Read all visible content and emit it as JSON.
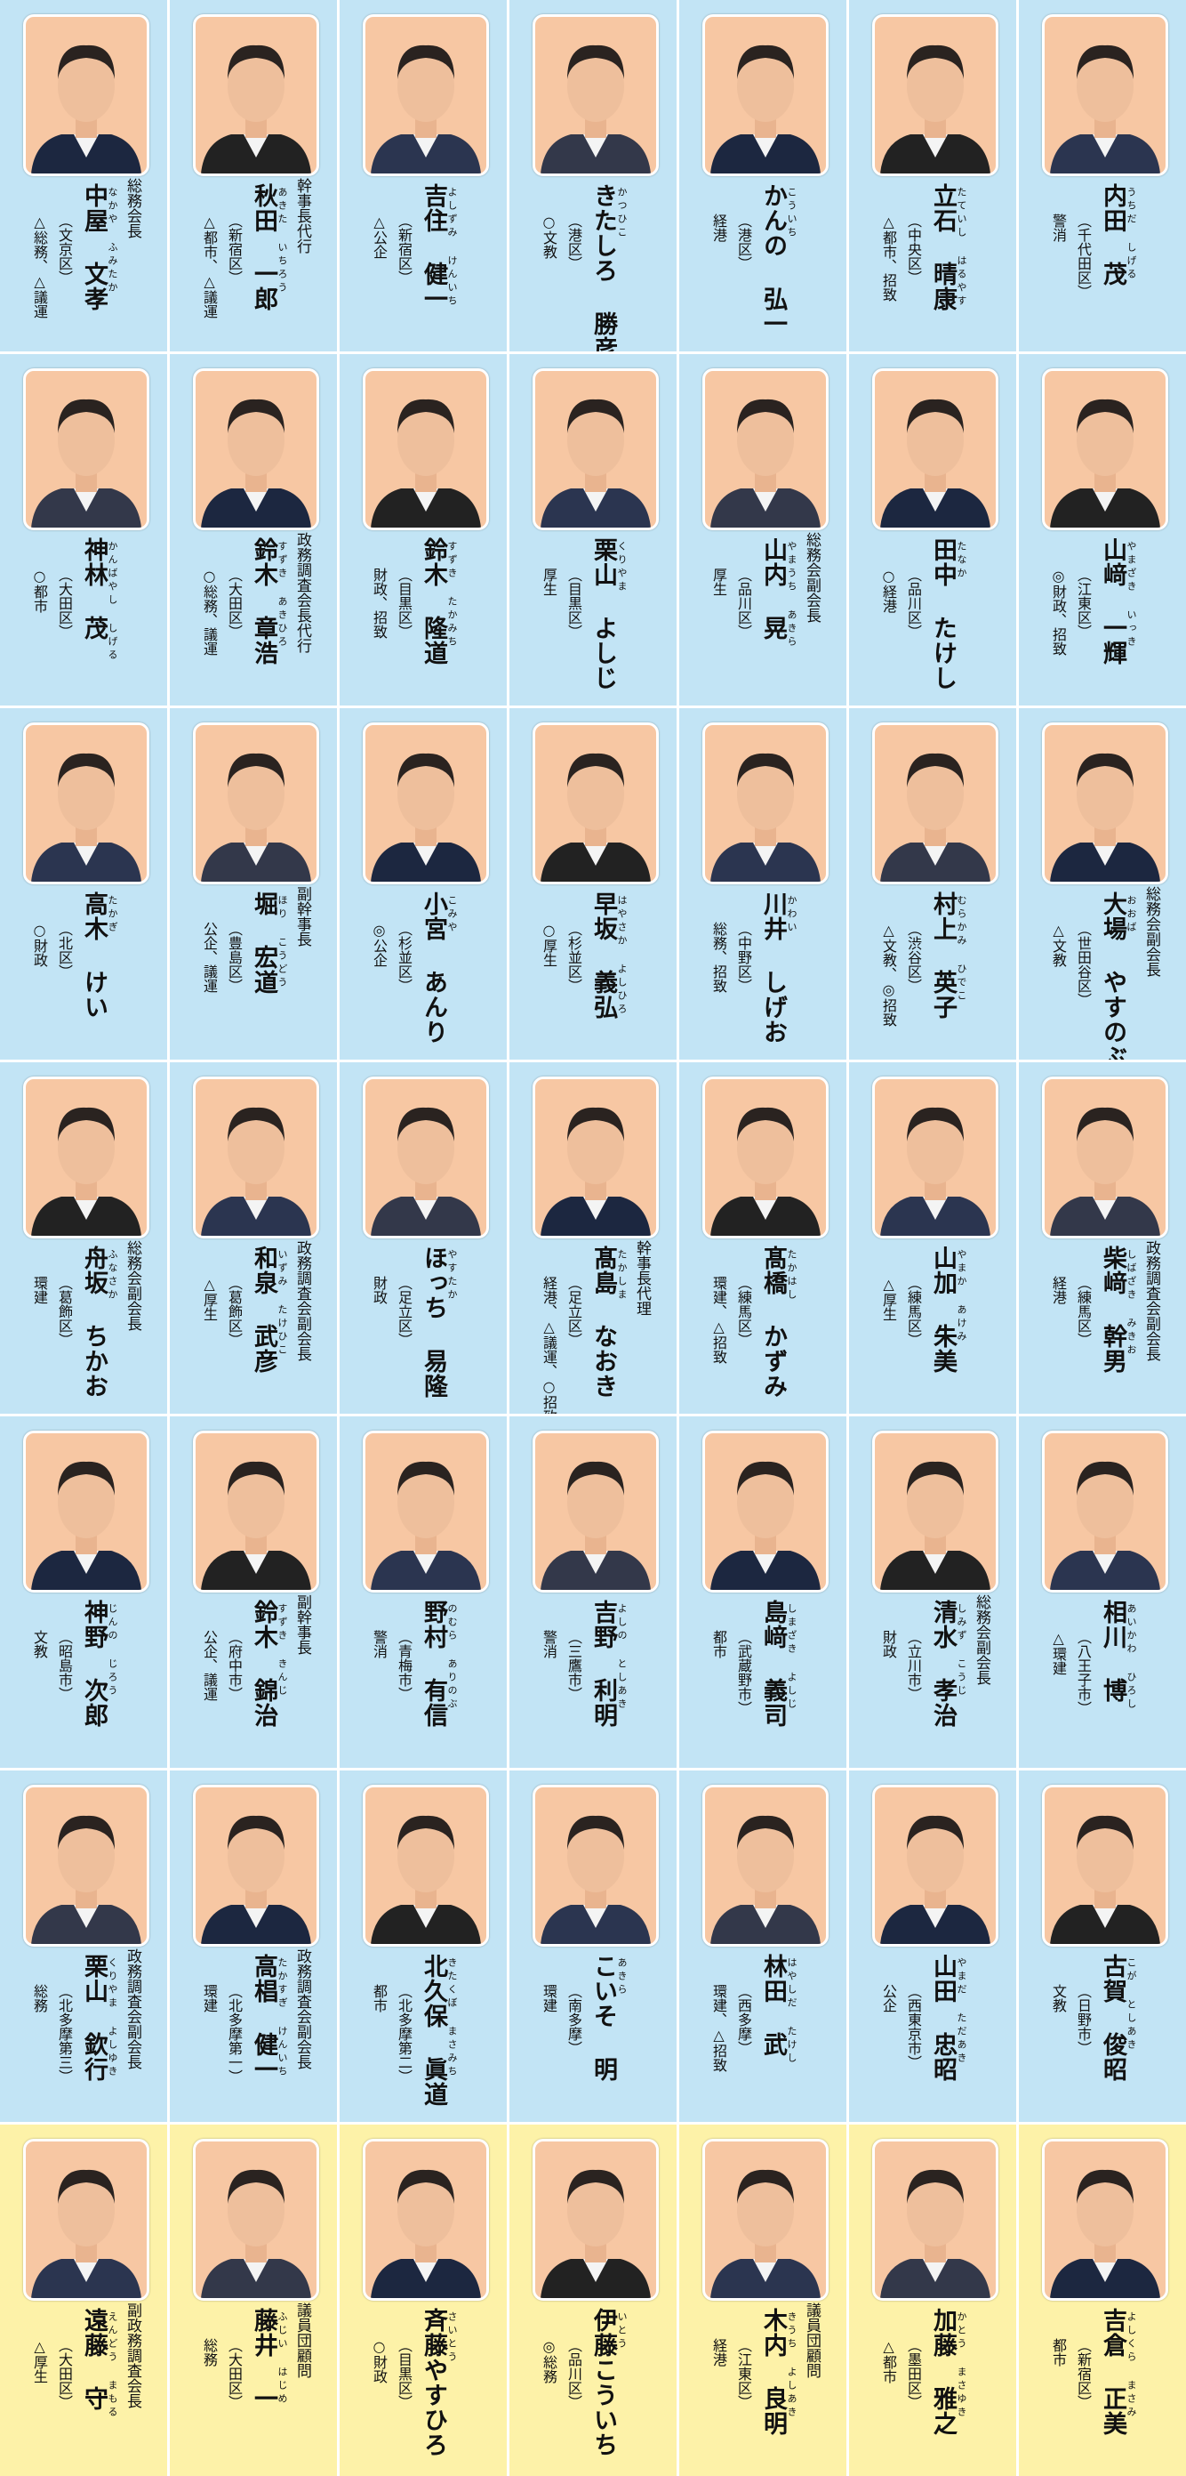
{
  "members": [
    {
      "role": "総務会長",
      "name": "中屋 文孝",
      "reading": "なかや ふみたか",
      "district": "（文京区）",
      "committees": "△総務、△議運"
    },
    {
      "role": "幹事長代行",
      "name": "秋田 一郎",
      "reading": "あきた いちろう",
      "district": "（新宿区）",
      "committees": "△都市、△議運"
    },
    {
      "name": "吉住 健一",
      "reading": "よしずみ けんいち",
      "district": "（新宿区）",
      "committees": "△公企"
    },
    {
      "name": "きたしろ 勝彦",
      "reading": "かつひこ",
      "district": "（港区）",
      "committees": "○文教"
    },
    {
      "name": "かんの 弘一",
      "reading": "こういち",
      "district": "（港区）",
      "committees": "経港"
    },
    {
      "name": "立石 晴康",
      "reading": "たていし はるやす",
      "district": "（中央区）",
      "committees": "△都市、招致"
    },
    {
      "name": "内田 茂",
      "reading": "うちだ しげる",
      "district": "（千代田区）",
      "committees": "警消"
    },
    {
      "name": "神林 茂",
      "reading": "かんばやし しげる",
      "district": "（大田区）",
      "committees": "○都市"
    },
    {
      "role": "政務調査会長代行",
      "name": "鈴木 章浩",
      "reading": "すずき あきひろ",
      "district": "（大田区）",
      "committees": "○総務、議運"
    },
    {
      "name": "鈴木 隆道",
      "reading": "すずき たかみち",
      "district": "（目黒区）",
      "committees": "財政、招致"
    },
    {
      "name": "栗山 よしじ",
      "reading": "くりやま",
      "district": "（目黒区）",
      "committees": "厚生"
    },
    {
      "role": "総務会副会長",
      "name": "山内 晃",
      "reading": "やまうち あきら",
      "district": "（品川区）",
      "committees": "厚生"
    },
    {
      "name": "田中 たけし",
      "reading": "たなか",
      "district": "（品川区）",
      "committees": "○経港"
    },
    {
      "name": "山﨑 一輝",
      "reading": "やまざき いっき",
      "district": "（江東区）",
      "committees": "◎財政、招致"
    },
    {
      "name": "高木 けい",
      "reading": "たかぎ",
      "district": "（北区）",
      "committees": "○財政"
    },
    {
      "role": "副幹事長",
      "name": "堀 宏道",
      "reading": "ほり こうどう",
      "district": "（豊島区）",
      "committees": "公企、議運"
    },
    {
      "name": "小宮 あんり",
      "reading": "こみや",
      "district": "（杉並区）",
      "committees": "◎公企"
    },
    {
      "name": "早坂 義弘",
      "reading": "はやさか よしひろ",
      "district": "（杉並区）",
      "committees": "○厚生"
    },
    {
      "name": "川井 しげお",
      "reading": "かわい",
      "district": "（中野区）",
      "committees": "総務、招致"
    },
    {
      "name": "村上 英子",
      "reading": "むらかみ ひでこ",
      "district": "（渋谷区）",
      "committees": "△文教、◎招致"
    },
    {
      "role": "総務会副会長",
      "name": "大場 やすのぶ",
      "reading": "おおば",
      "district": "（世田谷区）",
      "committees": "△文教"
    },
    {
      "role": "総務会副会長",
      "name": "舟坂 ちかお",
      "reading": "ふなさか",
      "district": "（葛飾区）",
      "committees": "環建"
    },
    {
      "role": "政務調査会副会長",
      "name": "和泉 武彦",
      "reading": "いずみ たけひこ",
      "district": "（葛飾区）",
      "committees": "△厚生"
    },
    {
      "name": "ほっち 易隆",
      "reading": "やすたか",
      "district": "（足立区）",
      "committees": "財政"
    },
    {
      "role": "幹事長代理",
      "name": "髙島 なおき",
      "reading": "たかしま",
      "district": "（足立区）",
      "committees": "経港、△議運、○招致"
    },
    {
      "name": "髙橋 かずみ",
      "reading": "たかはし",
      "district": "（練馬区）",
      "committees": "環建、△招致"
    },
    {
      "name": "山加 朱美",
      "reading": "やまか あけみ",
      "district": "（練馬区）",
      "committees": "△厚生"
    },
    {
      "role": "政務調査会副会長",
      "name": "柴﨑 幹男",
      "reading": "しばざき みきお",
      "district": "（練馬区）",
      "committees": "経港"
    },
    {
      "name": "神野 次郎",
      "reading": "じんの じろう",
      "district": "（昭島市）",
      "committees": "文教"
    },
    {
      "role": "副幹事長",
      "name": "鈴木 錦治",
      "reading": "すずき きんじ",
      "district": "（府中市）",
      "committees": "公企、議運"
    },
    {
      "name": "野村 有信",
      "reading": "のむら ありのぶ",
      "district": "（青梅市）",
      "committees": "警消"
    },
    {
      "name": "吉野 利明",
      "reading": "よしの としあき",
      "district": "（三鷹市）",
      "committees": "警消"
    },
    {
      "name": "島﨑 義司",
      "reading": "しまざき よしじ",
      "district": "（武蔵野市）",
      "committees": "都市"
    },
    {
      "role": "総務会副会長",
      "name": "清水 孝治",
      "reading": "しみず こうじ",
      "district": "（立川市）",
      "committees": "財政"
    },
    {
      "name": "相川 博",
      "reading": "あいかわ ひろし",
      "district": "（八王子市）",
      "committees": "△環建"
    },
    {
      "role": "政務調査会副会長",
      "name": "栗山 欽行",
      "reading": "くりやま よしゆき",
      "district": "（北多摩第三）",
      "committees": "総務"
    },
    {
      "role": "政務調査会副会長",
      "name": "高椙 健一",
      "reading": "たかすぎ けんいち",
      "district": "（北多摩第一）",
      "committees": "環建"
    },
    {
      "name": "北久保 眞道",
      "reading": "きたくぼ まさみち",
      "district": "（北多摩第二）",
      "committees": "都市"
    },
    {
      "name": "こいそ 明",
      "reading": "あきら",
      "district": "（南多摩）",
      "committees": "環建"
    },
    {
      "name": "林田 武",
      "reading": "はやしだ たけし",
      "district": "（西多摩）",
      "committees": "環建、△招致"
    },
    {
      "name": "山田 忠昭",
      "reading": "やまだ ただあき",
      "district": "（西東京市）",
      "committees": "公企"
    },
    {
      "name": "古賀 俊昭",
      "reading": "こが としあき",
      "district": "（日野市）",
      "committees": "文教"
    },
    {
      "role": "副政務調査会長",
      "name": "遠藤 守",
      "reading": "えんどう まもる",
      "district": "（大田区）",
      "committees": "△厚生"
    },
    {
      "role": "議員団顧問",
      "name": "藤井 一",
      "reading": "ふじい はじめ",
      "district": "（大田区）",
      "committees": "総務"
    },
    {
      "name": "斉藤やすひろ",
      "reading": "さいとう",
      "district": "（目黒区）",
      "committees": "○財政"
    },
    {
      "name": "伊藤こういち",
      "reading": "いとう",
      "district": "（品川区）",
      "committees": "◎総務"
    },
    {
      "role": "議員団顧問",
      "name": "木内 良明",
      "reading": "きうち よしあき",
      "district": "（江東区）",
      "committees": "経港"
    },
    {
      "name": "加藤 雅之",
      "reading": "かとう まさゆき",
      "district": "（墨田区）",
      "committees": "△都市"
    },
    {
      "name": "吉倉 正美",
      "reading": "よしくら まさみ",
      "district": "（新宿区）",
      "committees": "都市"
    }
  ]
}
